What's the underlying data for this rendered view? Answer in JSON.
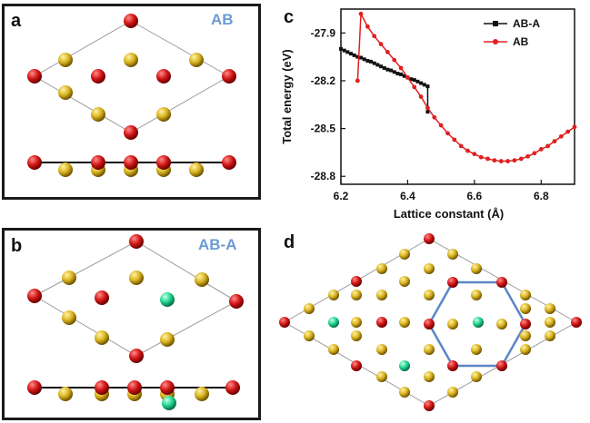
{
  "panels": {
    "a": {
      "letter": "a",
      "tag": "AB"
    },
    "b": {
      "letter": "b",
      "tag": "AB-A"
    },
    "c": {
      "letter": "c"
    },
    "d": {
      "letter": "d"
    }
  },
  "colors": {
    "red_atom": "#d11616",
    "yellow_atom": "#d8b21e",
    "green_atom": "#1ed48e",
    "hexagon": "#5b86c5",
    "series_ab": "#e02020",
    "series_aba": "#111111"
  },
  "chart_data": {
    "type": "line",
    "xlabel": "Lattice constant (Å)",
    "ylabel": "Total energy (eV)",
    "xlim": [
      6.2,
      6.9
    ],
    "ylim": [
      -28.85,
      -27.75
    ],
    "x_ticks": [
      "6.2",
      "6.4",
      "6.6",
      "6.8"
    ],
    "y_ticks": [
      "-27.9",
      "-28.2",
      "-28.5",
      "-28.8"
    ],
    "legend_position": "top-right",
    "series": [
      {
        "name": "AB-A",
        "color": "#111111",
        "marker": "square",
        "x": [
          6.2,
          6.21,
          6.22,
          6.23,
          6.24,
          6.25,
          6.26,
          6.27,
          6.28,
          6.29,
          6.3,
          6.31,
          6.32,
          6.33,
          6.34,
          6.35,
          6.36,
          6.37,
          6.38,
          6.39,
          6.4,
          6.41,
          6.42,
          6.43,
          6.44,
          6.45,
          6.46,
          6.46
        ],
        "y": [
          -28.0,
          -28.01,
          -28.02,
          -28.03,
          -28.04,
          -28.05,
          -28.055,
          -28.065,
          -28.075,
          -28.08,
          -28.09,
          -28.1,
          -28.11,
          -28.12,
          -28.13,
          -28.135,
          -28.145,
          -28.155,
          -28.16,
          -28.17,
          -28.18,
          -28.19,
          -28.195,
          -28.205,
          -28.215,
          -28.225,
          -28.235,
          -28.395
        ]
      },
      {
        "name": "AB",
        "color": "#e02020",
        "marker": "circle",
        "x": [
          6.25,
          6.26,
          6.28,
          6.3,
          6.32,
          6.34,
          6.36,
          6.38,
          6.4,
          6.42,
          6.44,
          6.46,
          6.48,
          6.5,
          6.52,
          6.54,
          6.56,
          6.58,
          6.6,
          6.62,
          6.64,
          6.66,
          6.68,
          6.7,
          6.72,
          6.74,
          6.76,
          6.78,
          6.8,
          6.82,
          6.84,
          6.86,
          6.88,
          6.9
        ],
        "y": [
          -28.2,
          -27.78,
          -27.86,
          -27.92,
          -27.97,
          -28.02,
          -28.07,
          -28.12,
          -28.18,
          -28.24,
          -28.3,
          -28.37,
          -28.43,
          -28.48,
          -28.53,
          -28.57,
          -28.61,
          -28.64,
          -28.66,
          -28.68,
          -28.69,
          -28.7,
          -28.705,
          -28.705,
          -28.7,
          -28.69,
          -28.675,
          -28.655,
          -28.63,
          -28.61,
          -28.58,
          -28.55,
          -28.52,
          -28.49
        ]
      }
    ]
  }
}
